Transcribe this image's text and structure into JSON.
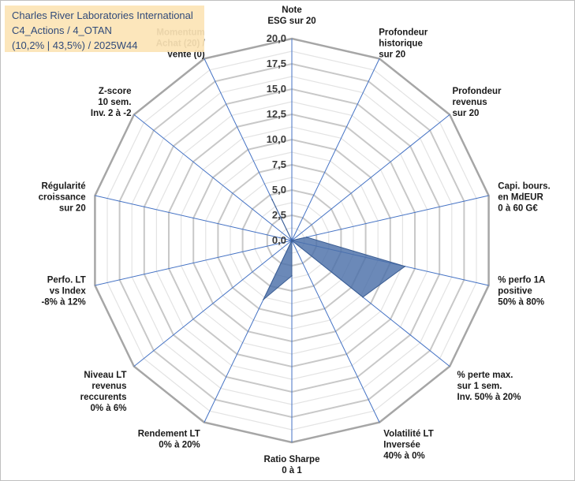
{
  "header": {
    "line1": "Charles River Laboratories International",
    "line2": "C4_Actions / 4_OTAN",
    "line3": "(10,2% | 43,5%) / 2025W44"
  },
  "colors": {
    "grid": "#c8c8c8",
    "spoke": "#4472c4",
    "fill": "#4a6fa8",
    "title_bg": "#fce4b6"
  },
  "chart_data": {
    "type": "radar",
    "title": "Charles River Laboratories International",
    "rlim": [
      0,
      20
    ],
    "ticks": [
      "0,0",
      "2,5",
      "5,0",
      "7,5",
      "10,0",
      "12,5",
      "15,0",
      "17,5",
      "20,0"
    ],
    "axes": [
      [
        "Note",
        "ESG sur 20"
      ],
      [
        "Profondeur",
        "historique",
        "sur 20"
      ],
      [
        "Profondeur",
        "revenus",
        "sur 20"
      ],
      [
        "Capi. bours.",
        "en MdEUR",
        "0 à 60 G€"
      ],
      [
        "% perfo 1A",
        "positive",
        "50% à 80%"
      ],
      [
        "% perte max.",
        "sur 1 sem.",
        "Inv. 50% à 20%"
      ],
      [
        "Volatilité LT",
        "Inversée",
        "40% à 0%"
      ],
      [
        "Ratio Sharpe",
        "0 à 1"
      ],
      [
        "Rendement LT",
        "0% à 20%"
      ],
      [
        "Niveau LT",
        "revenus",
        "reccurents",
        "0% à 6%"
      ],
      [
        "Perfo. LT",
        "vs Index",
        "-8% à 12%"
      ],
      [
        "Régularité",
        "croissance",
        "sur 20"
      ],
      [
        "Z-score",
        "10 sem.",
        "Inv. 2 à -2"
      ],
      [
        "Momentum",
        "Achat (20) /",
        "Vente (0)"
      ]
    ],
    "series": [
      {
        "name": "Charles River Laboratories International",
        "values": [
          0,
          0,
          0,
          1.5,
          11.5,
          9.0,
          0,
          3.5,
          6.5,
          0,
          0,
          0,
          0,
          4.5
        ]
      }
    ]
  }
}
